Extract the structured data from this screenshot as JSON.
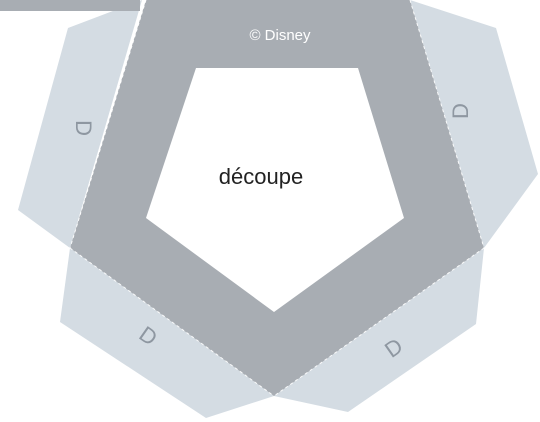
{
  "copyright": "© Disney",
  "cutout_label": "découpe",
  "tab_letters": [
    "D",
    "D",
    "D",
    "D"
  ],
  "colors": {
    "frame": "#a8adb3",
    "tab": "#d4dce3",
    "cutout": "#ffffff",
    "fold_line": "#ffffff",
    "tab_letter": "#8e97a1",
    "label": "#222222"
  }
}
